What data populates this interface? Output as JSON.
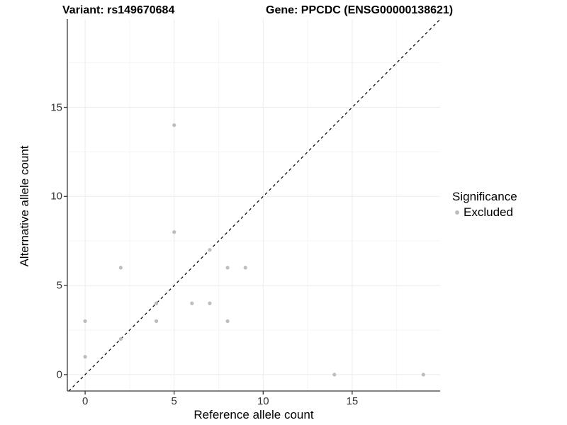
{
  "titles": {
    "variant": "Variant: rs149670684",
    "gene": "Gene: PPCDC (ENSG00000138621)"
  },
  "chart_data": {
    "type": "scatter",
    "title_left": "Variant: rs149670684",
    "title_right": "Gene: PPCDC (ENSG00000138621)",
    "xlabel": "Reference allele count",
    "ylabel": "Alternative allele count",
    "xlim": [
      -1.0,
      19.94
    ],
    "ylim": [
      -0.92,
      19.95
    ],
    "x_major_ticks": [
      0,
      5,
      10,
      15
    ],
    "y_major_ticks": [
      0,
      5,
      10,
      15
    ],
    "x_minor_ticks": [
      2.5,
      7.5,
      12.5,
      17.5
    ],
    "y_minor_ticks": [
      2.5,
      7.5,
      12.5,
      17.5
    ],
    "grid": "on",
    "identity_line": {
      "type": "dashed",
      "slope": 1,
      "intercept": 0
    },
    "series": [
      {
        "name": "Excluded",
        "color": "#bdbdbd",
        "points": [
          {
            "x": 0,
            "y": 1
          },
          {
            "x": 0,
            "y": 3
          },
          {
            "x": 2,
            "y": 2
          },
          {
            "x": 2,
            "y": 6
          },
          {
            "x": 4,
            "y": 3
          },
          {
            "x": 4,
            "y": 4
          },
          {
            "x": 5,
            "y": 8
          },
          {
            "x": 5,
            "y": 14
          },
          {
            "x": 6,
            "y": 4
          },
          {
            "x": 7,
            "y": 4
          },
          {
            "x": 7,
            "y": 7
          },
          {
            "x": 8,
            "y": 3
          },
          {
            "x": 8,
            "y": 6
          },
          {
            "x": 9,
            "y": 6
          },
          {
            "x": 14,
            "y": 0
          },
          {
            "x": 19,
            "y": 0
          }
        ]
      }
    ],
    "legend": {
      "position": "right",
      "title": "Significance",
      "entries": [
        {
          "label": "Excluded",
          "color": "#bdbdbd"
        }
      ]
    }
  },
  "colors": {
    "point": "#bdbdbd",
    "grid_major": "#ececec",
    "grid_minor": "#f5f5f5",
    "axis_line": "#3a3a3a",
    "tick_mark": "#3a3a3a",
    "identity_line": "#000000",
    "background": "#ffffff"
  }
}
